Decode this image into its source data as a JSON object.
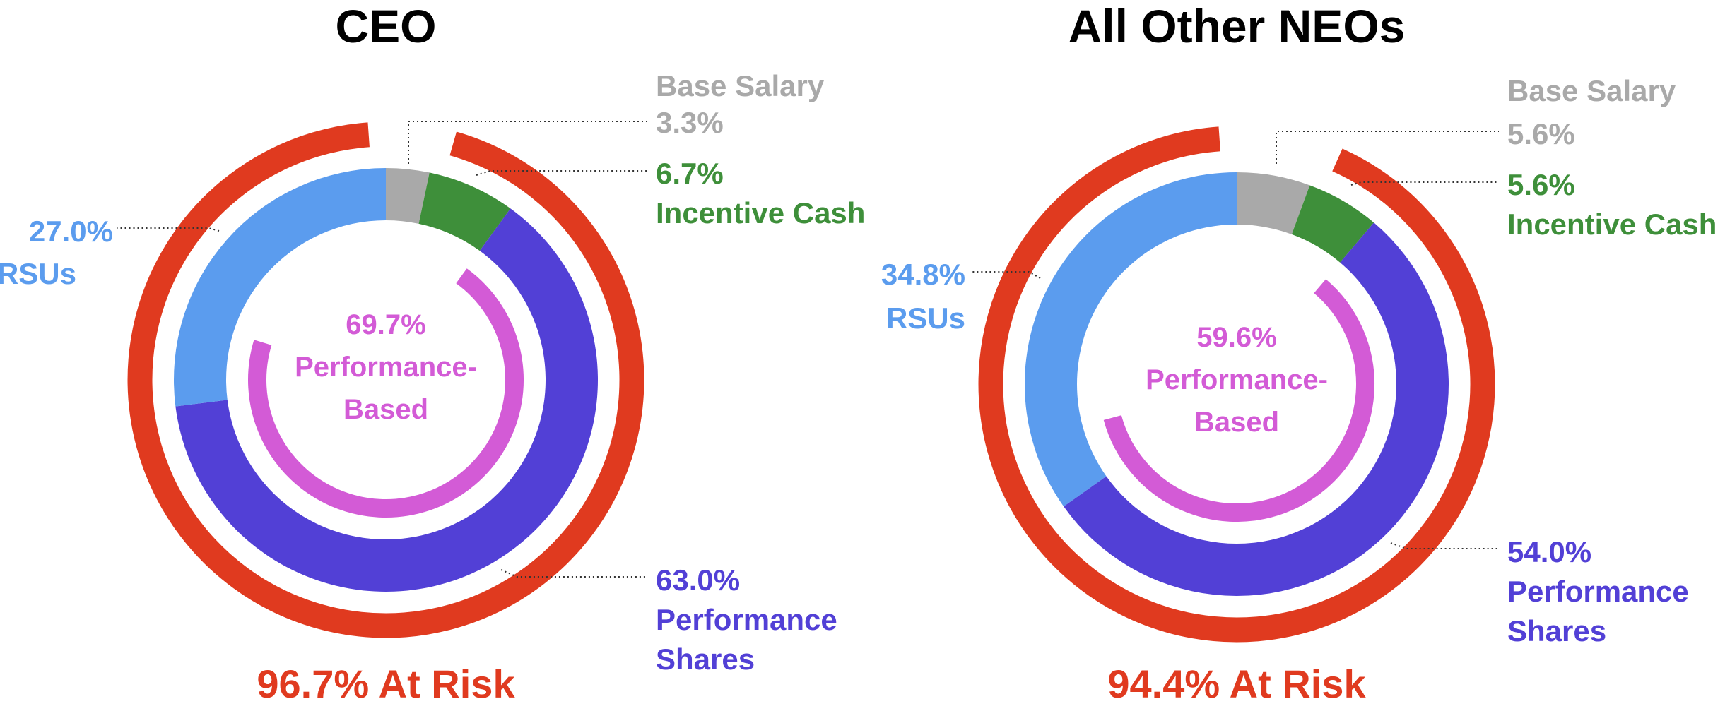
{
  "colors": {
    "base_salary": "#a9a9a9",
    "incentive_cash": "#3e8f3a",
    "rsus": "#5b9cee",
    "performance_shares": "#5240d6",
    "performance_based": "#d35bd6",
    "at_risk": "#e03a1f",
    "title": "#000000"
  },
  "chart_data": [
    {
      "type": "pie",
      "title": "CEO",
      "segments": [
        {
          "name": "Base Salary",
          "value": 3.3,
          "label": "3.3%",
          "color": "#a9a9a9"
        },
        {
          "name": "Incentive Cash",
          "value": 6.7,
          "label": "6.7%",
          "color": "#3e8f3a"
        },
        {
          "name": "Performance Shares",
          "value": 63.0,
          "label": "63.0%",
          "color": "#5240d6"
        },
        {
          "name": "RSUs",
          "value": 27.0,
          "label": "27.0%",
          "color": "#5b9cee"
        }
      ],
      "performance_based": {
        "value": 69.7,
        "label": "69.7%",
        "text_line1": "Performance-",
        "text_line2": "Based"
      },
      "at_risk": {
        "value": 96.7,
        "label": "96.7% At Risk"
      },
      "labels": {
        "base_salary_name": "Base Salary",
        "incentive_cash_name": "Incentive Cash",
        "rsus_name": "RSUs",
        "performance_shares_line1": "Performance",
        "performance_shares_line2": "Shares"
      }
    },
    {
      "type": "pie",
      "title": "All Other NEOs",
      "segments": [
        {
          "name": "Base Salary",
          "value": 5.6,
          "label": "5.6%",
          "color": "#a9a9a9"
        },
        {
          "name": "Incentive Cash",
          "value": 5.6,
          "label": "5.6%",
          "color": "#3e8f3a"
        },
        {
          "name": "Performance Shares",
          "value": 54.0,
          "label": "54.0%",
          "color": "#5240d6"
        },
        {
          "name": "RSUs",
          "value": 34.8,
          "label": "34.8%",
          "color": "#5b9cee"
        }
      ],
      "performance_based": {
        "value": 59.6,
        "label": "59.6%",
        "text_line1": "Performance-",
        "text_line2": "Based"
      },
      "at_risk": {
        "value": 94.4,
        "label": "94.4% At Risk"
      },
      "labels": {
        "base_salary_name": "Base Salary",
        "incentive_cash_name": "Incentive Cash",
        "rsus_name": "RSUs",
        "performance_shares_line1": "Performance",
        "performance_shares_line2": "Shares"
      }
    }
  ]
}
